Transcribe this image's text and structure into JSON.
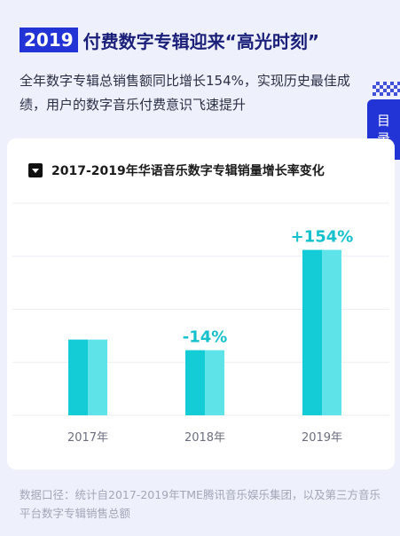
{
  "headline": {
    "year_badge": "2019",
    "title": "付费数字专辑迎来“高光时刻”"
  },
  "intro_text": "全年数字专辑总销售额同比增长154%，实现历史最佳成绩，用户的数字音乐付费意识飞速提升",
  "toc_tab": {
    "chars": [
      "目",
      "录"
    ]
  },
  "colors": {
    "accent_blue": "#2334d6",
    "bar_dark": "#14ccd6",
    "bar_light": "#5ee3e8",
    "label_teal": "#14c1cc"
  },
  "chart_data": {
    "type": "bar",
    "title": "2017-2019年华语音乐数字专辑销量增长率变化",
    "categories": [
      "2017年",
      "2018年",
      "2019年"
    ],
    "values": [
      100,
      86,
      218.4
    ],
    "labels": [
      "",
      "-14%",
      "+154%"
    ],
    "ylim": [
      0,
      280
    ],
    "grid": true
  },
  "footnote": "数据口径：统计自2017-2019年TME腾讯音乐娱乐集团，以及第三方音乐平台数字专辑销售总额"
}
